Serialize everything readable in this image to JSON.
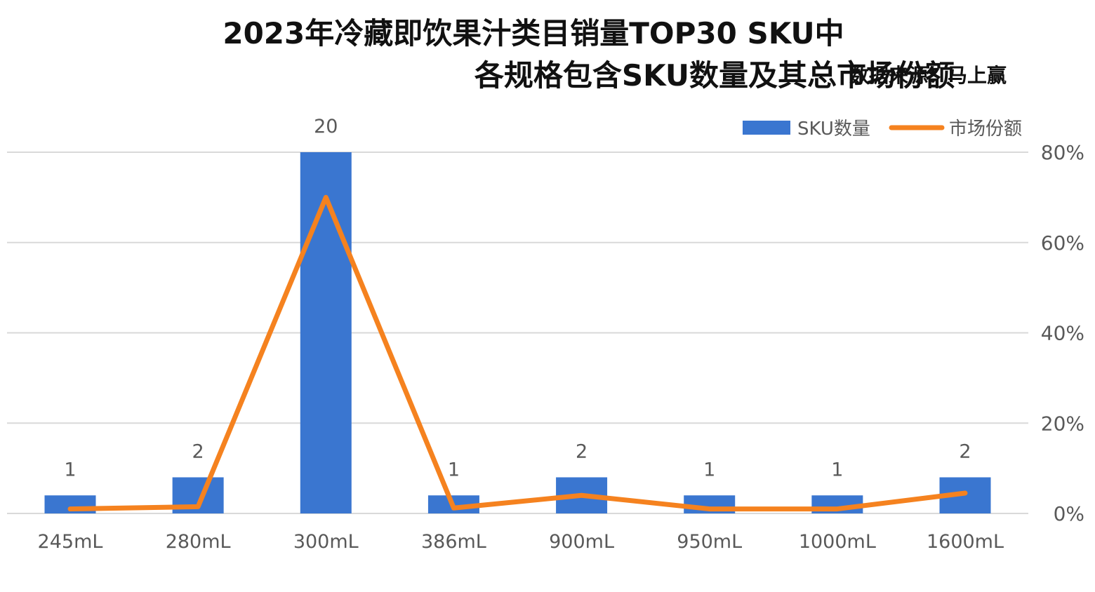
{
  "title_line1": "2023年冷藏即饮果汁类目销量TOP30 SKU中",
  "title_line2": "各规格包含SKU数量及其总市场份额",
  "source": "数据来源：马上赢",
  "colors": {
    "bar": "#3A76D0",
    "line": "#F5821F",
    "grid": "#D9D9D9",
    "tick": "#595959"
  },
  "chart_data": {
    "type": "bar",
    "categories": [
      "245mL",
      "280mL",
      "300mL",
      "386mL",
      "900mL",
      "950mL",
      "1000mL",
      "1600mL"
    ],
    "series": [
      {
        "name": "SKU数量",
        "type": "bar",
        "axis": "left",
        "values": [
          1,
          2,
          20,
          1,
          2,
          1,
          1,
          2
        ]
      },
      {
        "name": "市场份额",
        "type": "line",
        "axis": "right",
        "values": [
          0.01,
          0.015,
          0.7,
          0.012,
          0.04,
          0.01,
          0.01,
          0.045
        ]
      }
    ],
    "y_left_lim": [
      0,
      20
    ],
    "y_right_lim": [
      0,
      0.8
    ],
    "y_right_ticks": [
      "0%",
      "20%",
      "40%",
      "60%",
      "80%"
    ],
    "data_labels": [
      "1",
      "2",
      "20",
      "1",
      "2",
      "1",
      "1",
      "2"
    ],
    "grid": true,
    "legend_position": "top-right"
  }
}
